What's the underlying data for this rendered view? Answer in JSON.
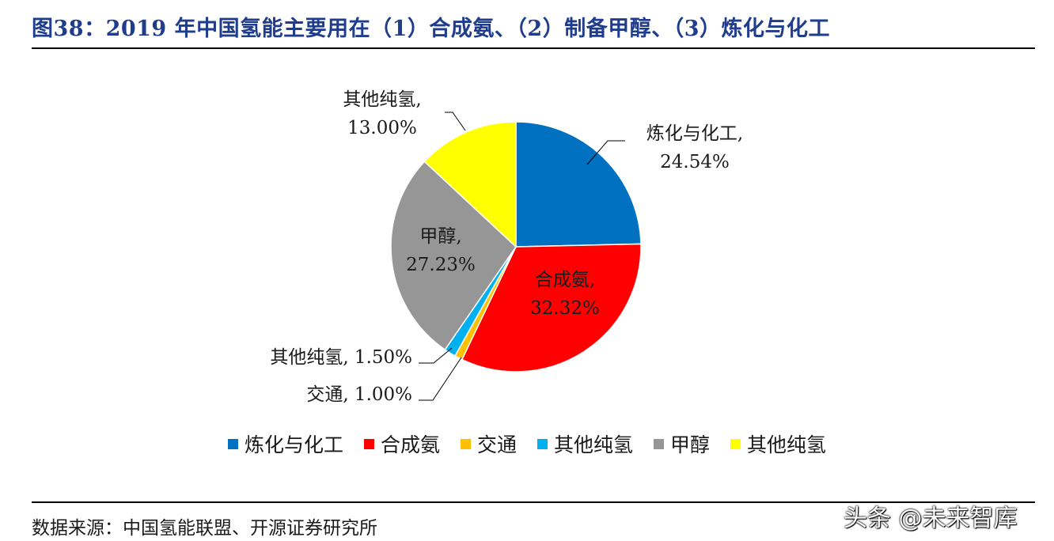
{
  "header": {
    "title": "图38：2019 年中国氢能主要用在（1）合成氨、（2）制备甲醇、（3）炼化与化工"
  },
  "chart_data": {
    "type": "pie",
    "title": "图38：2019 年中国氢能主要用在（1）合成氨、（2）制备甲醇、（3）炼化与化工",
    "start_angle": "12 o'clock, clockwise",
    "slices": [
      {
        "name": "炼化与化工",
        "value": 24.54,
        "value_label": "24.54%",
        "label_line1": "炼化与化工,",
        "color": "#0070c0"
      },
      {
        "name": "合成氨",
        "value": 32.32,
        "value_label": "32.32%",
        "label_line1": "合成氨,",
        "color": "#ff0000"
      },
      {
        "name": "交通",
        "value": 1.0,
        "value_label": "交通, 1.00%",
        "label_line1": "",
        "color": "#ffc000"
      },
      {
        "name": "其他纯氢",
        "value": 1.5,
        "value_label": "其他纯氢, 1.50%",
        "label_line1": "",
        "color": "#00b0f0"
      },
      {
        "name": "甲醇",
        "value": 27.23,
        "value_label": "27.23%",
        "label_line1": "甲醇,",
        "color": "#969696"
      },
      {
        "name": "其他纯氢",
        "value": 13.0,
        "value_label": "13.00%",
        "label_line1": "其他纯氢,",
        "color": "#ffff00"
      }
    ],
    "legend": [
      "炼化与化工",
      "合成氨",
      "交通",
      "其他纯氢",
      "甲醇",
      "其他纯氢"
    ],
    "legend_position": "bottom"
  },
  "footer": {
    "source": "数据来源：中国氢能联盟、开源证券研究所"
  },
  "watermark": {
    "text": "头条 @未来智库"
  }
}
